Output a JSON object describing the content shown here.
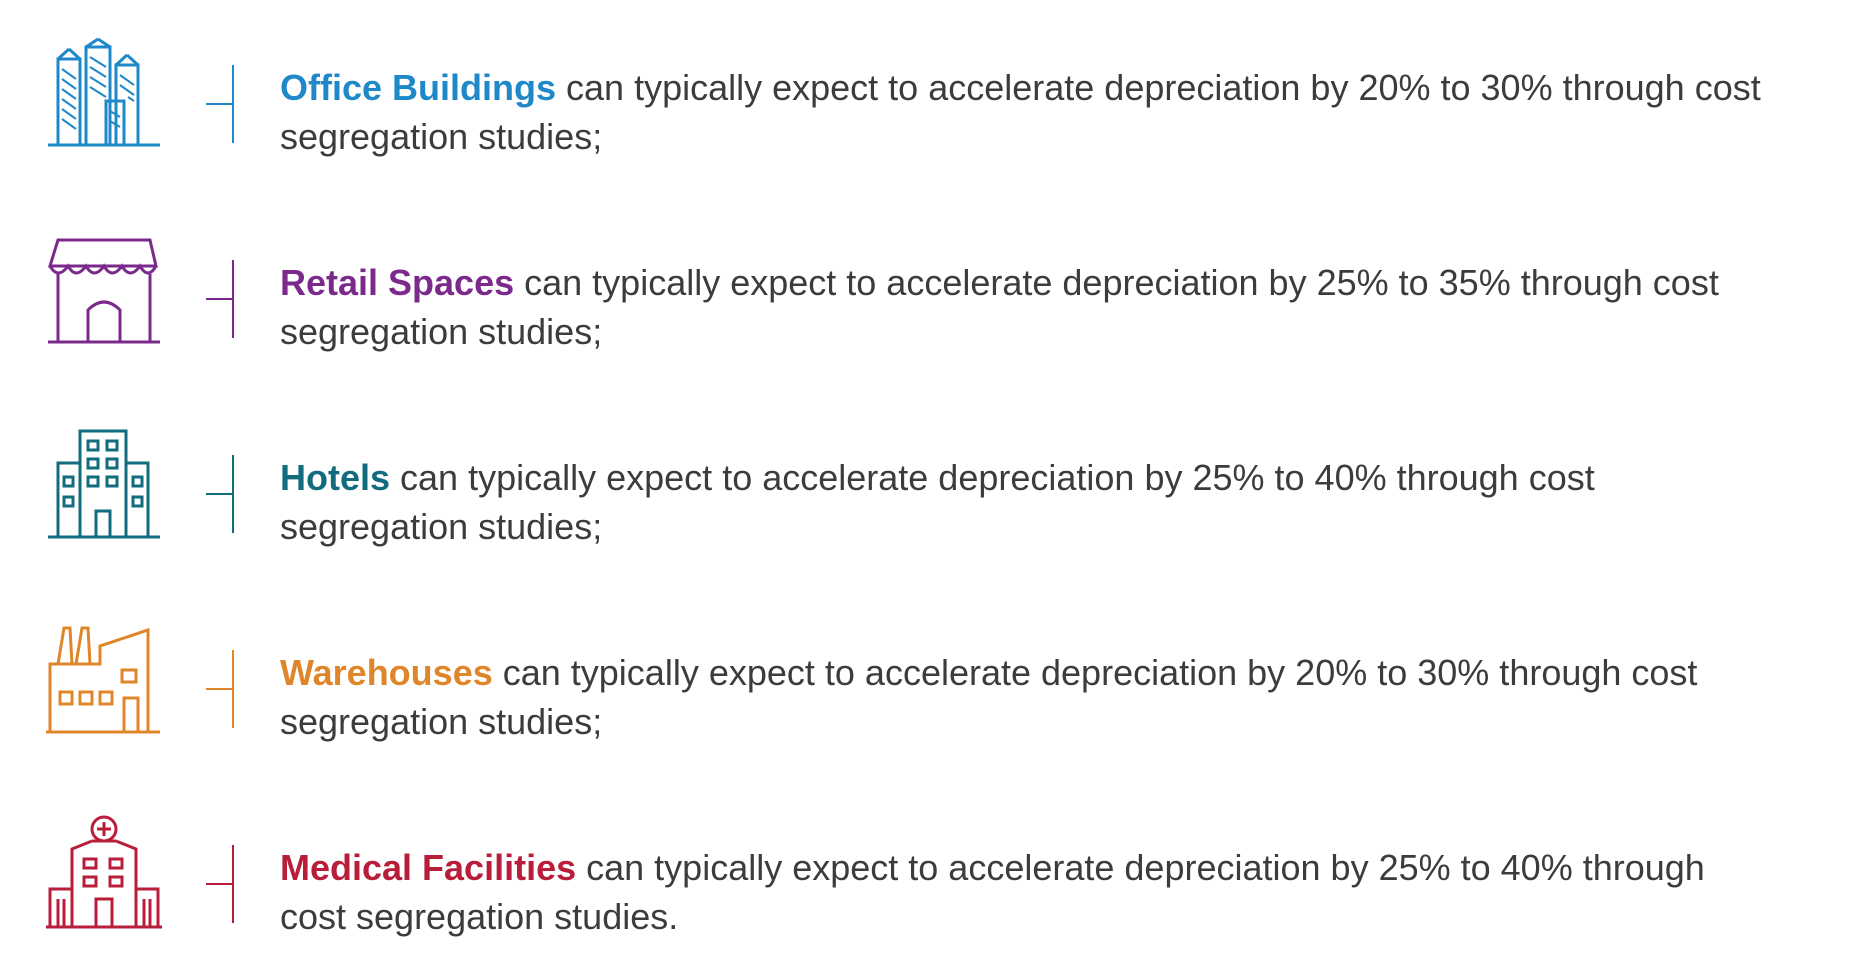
{
  "items": [
    {
      "title": "Office Buildings",
      "text": " can typically expect to accelerate depreciation by 20% to 30% through cost segregation studies;",
      "icon": "office-buildings-icon",
      "color": "#1e88c8"
    },
    {
      "title": "Retail Spaces",
      "text": " can typically expect to accelerate depreciation by 25% to 35% through cost segregation studies;",
      "icon": "retail-storefront-icon",
      "color": "#7b2a8c"
    },
    {
      "title": "Hotels",
      "text": " can typically expect to accelerate depreciation by 25% to 40% through cost segregation studies;",
      "icon": "hotel-building-icon",
      "color": "#136c7e"
    },
    {
      "title": "Warehouses",
      "text": " can typically expect to accelerate depreciation by 20% to 30% through cost segregation studies;",
      "icon": "warehouse-factory-icon",
      "color": "#e0862a"
    },
    {
      "title": "Medical Facilities",
      "text": " can typically expect to accelerate depreciation by 25% to 40% through cost segregation studies.",
      "icon": "hospital-icon",
      "color": "#b81e3a"
    }
  ],
  "colors": {
    "body_text": "#3c3c3c",
    "background": "#ffffff"
  }
}
